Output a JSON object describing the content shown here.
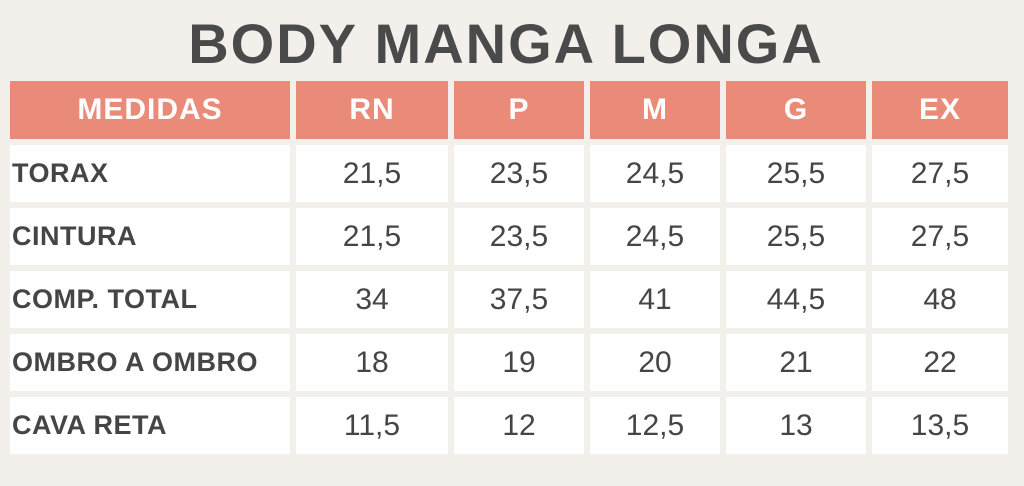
{
  "title": "BODY MANGA LONGA",
  "table": {
    "headers": [
      "MEDIDAS",
      "RN",
      "P",
      "M",
      "G",
      "EX"
    ],
    "rows": [
      {
        "label": "TORAX",
        "values": [
          "21,5",
          "23,5",
          "24,5",
          "25,5",
          "27,5"
        ]
      },
      {
        "label": "CINTURA",
        "values": [
          "21,5",
          "23,5",
          "24,5",
          "25,5",
          "27,5"
        ]
      },
      {
        "label": "COMP. TOTAL",
        "values": [
          "34",
          "37,5",
          "41",
          "44,5",
          "48"
        ]
      },
      {
        "label": "OMBRO A OMBRO",
        "values": [
          "18",
          "19",
          "20",
          "21",
          "22"
        ]
      },
      {
        "label": "CAVA RETA",
        "values": [
          "11,5",
          "12",
          "12,5",
          "13",
          "13,5"
        ]
      }
    ]
  },
  "colors": {
    "header_bg": "#ea8b79",
    "page_bg": "#f3f0eb",
    "text": "#454545"
  }
}
